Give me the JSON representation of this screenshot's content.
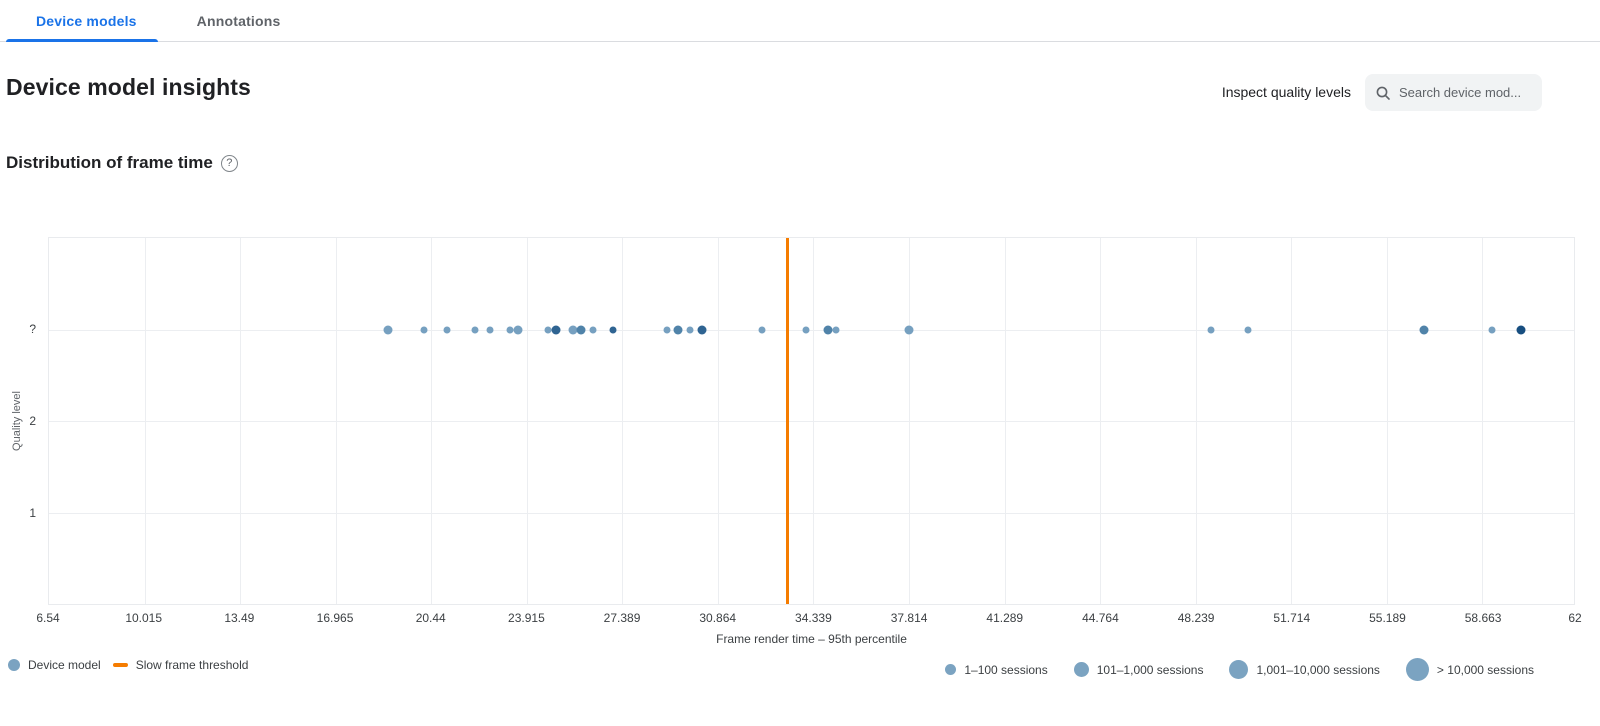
{
  "tabs": {
    "items": [
      {
        "label": "Device models",
        "active": true
      },
      {
        "label": "Annotations",
        "active": false
      }
    ]
  },
  "header": {
    "title": "Device model insights",
    "inspect_link": "Inspect quality levels",
    "search_placeholder": "Search device mod..."
  },
  "section": {
    "title": "Distribution of frame time",
    "help_glyph": "?"
  },
  "colors": {
    "accent_blue": "#1a73e8",
    "threshold_orange": "#f57c00",
    "point_light": "#76a0c0",
    "point_medium": "#5083a9",
    "point_dark": "#2f6492",
    "point_darkest": "#174e80"
  },
  "chart_data": {
    "type": "scatter",
    "title": "Distribution of frame time",
    "xlabel": "Frame render time – 95th percentile",
    "ylabel": "Quality level",
    "xlim": [
      6.54,
      62
    ],
    "grid": true,
    "x_ticks": [
      6.54,
      10.015,
      13.49,
      16.965,
      20.44,
      23.915,
      27.389,
      30.864,
      34.339,
      37.814,
      41.289,
      44.764,
      48.239,
      51.714,
      55.189,
      58.663,
      62
    ],
    "x_tick_labels": [
      "6.54",
      "10.015",
      "13.49",
      "16.965",
      "20.44",
      "23.915",
      "27.389",
      "30.864",
      "34.339",
      "37.814",
      "41.289",
      "44.764",
      "48.239",
      "51.714",
      "55.189",
      "58.663",
      "62"
    ],
    "y_tick_labels": [
      "?",
      "2",
      "1"
    ],
    "threshold": {
      "label": "Slow frame threshold",
      "value": 33.38
    },
    "point_colors": {
      "light": "#76a0c0",
      "medium": "#5083a9",
      "dark": "#2f6492",
      "darkest": "#174e80"
    },
    "series": [
      {
        "name": "Device model",
        "y_level": "?",
        "points": [
          {
            "x": 18.86,
            "size": "m",
            "shade": "light"
          },
          {
            "x": 20.16,
            "size": "s",
            "shade": "light"
          },
          {
            "x": 21.0,
            "size": "s",
            "shade": "light"
          },
          {
            "x": 22.05,
            "size": "s",
            "shade": "light"
          },
          {
            "x": 22.56,
            "size": "s",
            "shade": "light"
          },
          {
            "x": 23.32,
            "size": "s",
            "shade": "light"
          },
          {
            "x": 23.6,
            "size": "m",
            "shade": "light"
          },
          {
            "x": 24.67,
            "size": "s",
            "shade": "light"
          },
          {
            "x": 24.97,
            "size": "m",
            "shade": "dark"
          },
          {
            "x": 25.58,
            "size": "m",
            "shade": "light"
          },
          {
            "x": 25.9,
            "size": "m",
            "shade": "medium"
          },
          {
            "x": 26.34,
            "size": "s",
            "shade": "light"
          },
          {
            "x": 27.06,
            "size": "s",
            "shade": "dark"
          },
          {
            "x": 29.02,
            "size": "s",
            "shade": "light"
          },
          {
            "x": 29.4,
            "size": "m",
            "shade": "medium"
          },
          {
            "x": 29.86,
            "size": "s",
            "shade": "light"
          },
          {
            "x": 30.3,
            "size": "m",
            "shade": "dark"
          },
          {
            "x": 32.48,
            "size": "s",
            "shade": "light"
          },
          {
            "x": 34.07,
            "size": "s",
            "shade": "light"
          },
          {
            "x": 34.87,
            "size": "m",
            "shade": "medium"
          },
          {
            "x": 35.16,
            "size": "s",
            "shade": "light"
          },
          {
            "x": 37.82,
            "size": "m",
            "shade": "light"
          },
          {
            "x": 48.79,
            "size": "s",
            "shade": "light"
          },
          {
            "x": 50.13,
            "size": "s",
            "shade": "light"
          },
          {
            "x": 56.56,
            "size": "m",
            "shade": "medium"
          },
          {
            "x": 59.03,
            "size": "s",
            "shade": "light"
          },
          {
            "x": 60.08,
            "size": "m",
            "shade": "darkest"
          }
        ]
      }
    ],
    "legend": [
      {
        "type": "dot",
        "label": "Device model"
      },
      {
        "type": "line",
        "label": "Slow frame threshold"
      }
    ],
    "size_legend": [
      {
        "label": "1–100 sessions"
      },
      {
        "label": "101–1,000 sessions"
      },
      {
        "label": "1,001–10,000 sessions"
      },
      {
        "label": "> 10,000 sessions"
      }
    ]
  }
}
